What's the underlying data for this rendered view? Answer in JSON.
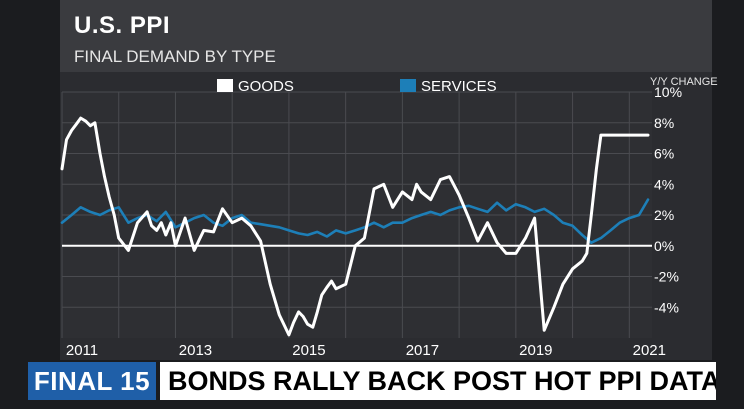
{
  "header": {
    "title": "U.S. PPI",
    "subtitle": "FINAL DEMAND BY TYPE"
  },
  "ticker": {
    "badge": "FINAL 15",
    "headline": "BONDS RALLY BACK POST HOT PPI DATA"
  },
  "colors": {
    "goods": "#ffffff",
    "services": "#1d7fb8",
    "badge": "#1f5fa8"
  },
  "chart_data": {
    "type": "line",
    "ylabel": "Y/Y CHANGE",
    "ylim": [
      -6,
      10
    ],
    "yticks": [
      10,
      8,
      6,
      4,
      2,
      0,
      -2,
      -4
    ],
    "ytick_labels": [
      "10%",
      "8%",
      "6%",
      "4%",
      "2%",
      "0%",
      "-2%",
      "-4%"
    ],
    "xlim": [
      2011.0,
      2021.4
    ],
    "xticks": [
      2011,
      2013,
      2015,
      2017,
      2019,
      2021
    ],
    "xtick_labels": [
      "2011",
      "2013",
      "2015",
      "2017",
      "2019",
      "2021"
    ],
    "legend": "top",
    "series": [
      {
        "name": "GOODS",
        "color": "#ffffff",
        "x": [
          2011.0,
          2011.08,
          2011.17,
          2011.25,
          2011.33,
          2011.42,
          2011.5,
          2011.58,
          2011.67,
          2011.75,
          2011.83,
          2011.92,
          2012.0,
          2012.17,
          2012.33,
          2012.5,
          2012.58,
          2012.67,
          2012.75,
          2012.83,
          2012.92,
          2013.0,
          2013.17,
          2013.33,
          2013.42,
          2013.5,
          2013.67,
          2013.83,
          2014.0,
          2014.17,
          2014.33,
          2014.5,
          2014.67,
          2014.83,
          2015.0,
          2015.08,
          2015.17,
          2015.25,
          2015.33,
          2015.42,
          2015.5,
          2015.58,
          2015.67,
          2015.75,
          2015.83,
          2016.0,
          2016.17,
          2016.33,
          2016.5,
          2016.67,
          2016.83,
          2017.0,
          2017.17,
          2017.25,
          2017.33,
          2017.5,
          2017.67,
          2017.83,
          2018.0,
          2018.17,
          2018.33,
          2018.5,
          2018.67,
          2018.83,
          2019.0,
          2019.17,
          2019.33,
          2019.5,
          2019.67,
          2019.83,
          2020.0,
          2020.17,
          2020.25,
          2020.33,
          2020.42,
          2020.5,
          2020.67,
          2020.83,
          2021.0,
          2021.17,
          2021.25,
          2021.33
        ],
        "values": [
          5.0,
          6.9,
          7.5,
          7.9,
          8.3,
          8.1,
          7.8,
          8.0,
          6.0,
          4.5,
          3.2,
          2.0,
          0.5,
          -0.3,
          1.5,
          2.2,
          1.3,
          1.0,
          1.5,
          0.7,
          1.5,
          0.0,
          1.8,
          -0.3,
          0.4,
          1.0,
          0.9,
          2.4,
          1.5,
          1.8,
          1.3,
          0.3,
          -2.5,
          -4.5,
          -5.8,
          -5.0,
          -4.3,
          -4.6,
          -5.1,
          -5.3,
          -4.3,
          -3.2,
          -2.7,
          -2.3,
          -2.8,
          -2.5,
          0.0,
          0.5,
          3.7,
          4.0,
          2.5,
          3.5,
          3.0,
          4.0,
          3.5,
          3.0,
          4.3,
          4.5,
          3.3,
          1.8,
          0.3,
          1.5,
          0.2,
          -0.5,
          -0.5,
          0.5,
          1.8,
          -5.5,
          -4.0,
          -2.5,
          -1.5,
          -1.0,
          -0.5,
          2.0,
          5.0,
          7.2,
          7.2,
          7.2,
          7.2,
          7.2,
          7.2,
          7.2
        ]
      },
      {
        "name": "SERVICES",
        "color": "#1d7fb8",
        "x": [
          2011.0,
          2011.17,
          2011.33,
          2011.5,
          2011.67,
          2011.83,
          2012.0,
          2012.17,
          2012.33,
          2012.5,
          2012.67,
          2012.83,
          2013.0,
          2013.17,
          2013.33,
          2013.5,
          2013.67,
          2013.83,
          2014.0,
          2014.17,
          2014.33,
          2014.5,
          2014.67,
          2014.83,
          2015.0,
          2015.17,
          2015.33,
          2015.5,
          2015.67,
          2015.83,
          2016.0,
          2016.17,
          2016.33,
          2016.5,
          2016.67,
          2016.83,
          2017.0,
          2017.17,
          2017.33,
          2017.5,
          2017.67,
          2017.83,
          2018.0,
          2018.17,
          2018.33,
          2018.5,
          2018.67,
          2018.83,
          2019.0,
          2019.17,
          2019.33,
          2019.5,
          2019.67,
          2019.83,
          2020.0,
          2020.17,
          2020.33,
          2020.5,
          2020.67,
          2020.83,
          2021.0,
          2021.17,
          2021.33
        ],
        "values": [
          1.5,
          2.0,
          2.5,
          2.2,
          2.0,
          2.3,
          2.5,
          1.5,
          1.8,
          2.0,
          1.6,
          2.2,
          1.2,
          1.5,
          1.8,
          2.0,
          1.5,
          1.3,
          1.8,
          2.0,
          1.5,
          1.4,
          1.3,
          1.2,
          1.0,
          0.8,
          0.7,
          0.9,
          0.6,
          1.0,
          0.8,
          1.0,
          1.2,
          1.5,
          1.2,
          1.5,
          1.5,
          1.8,
          2.0,
          2.2,
          2.0,
          2.3,
          2.5,
          2.6,
          2.4,
          2.2,
          2.8,
          2.3,
          2.7,
          2.5,
          2.2,
          2.4,
          2.0,
          1.5,
          1.3,
          0.7,
          0.2,
          0.5,
          1.0,
          1.5,
          1.8,
          2.0,
          3.0
        ]
      }
    ]
  }
}
